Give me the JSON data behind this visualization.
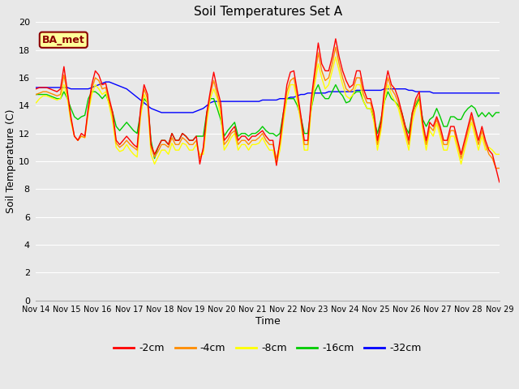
{
  "title": "Soil Temperatures Set A",
  "xlabel": "Time",
  "ylabel": "Soil Temperature (C)",
  "ylim": [
    0,
    20
  ],
  "yticks": [
    0,
    2,
    4,
    6,
    8,
    10,
    12,
    14,
    16,
    18,
    20
  ],
  "xtick_labels": [
    "Nov 14",
    "Nov 15",
    "Nov 16",
    "Nov 17",
    "Nov 18",
    "Nov 19",
    "Nov 20",
    "Nov 21",
    "Nov 22",
    "Nov 23",
    "Nov 24",
    "Nov 25",
    "Nov 26",
    "Nov 27",
    "Nov 28",
    "Nov 29"
  ],
  "background_color": "#e8e8e8",
  "plot_bg_color": "#e8e8e8",
  "grid_color": "#ffffff",
  "annotation_text": "BA_met",
  "annotation_bg": "#ffff99",
  "annotation_border": "#8b0000",
  "series": {
    "2cm": {
      "color": "#ff0000",
      "label": "-2cm",
      "values": [
        15.2,
        15.3,
        15.3,
        15.3,
        15.2,
        15.1,
        15.0,
        15.2,
        16.8,
        15.0,
        13.2,
        11.8,
        11.5,
        12.0,
        11.8,
        13.9,
        15.5,
        16.5,
        16.2,
        15.5,
        15.6,
        14.5,
        13.5,
        11.5,
        11.2,
        11.5,
        11.8,
        11.5,
        11.2,
        11.0,
        13.8,
        15.5,
        14.8,
        11.2,
        10.5,
        11.0,
        11.5,
        11.5,
        11.2,
        12.0,
        11.5,
        11.5,
        12.0,
        11.8,
        11.5,
        11.5,
        11.8,
        9.8,
        11.0,
        13.5,
        15.0,
        16.4,
        15.2,
        14.2,
        11.5,
        11.8,
        12.2,
        12.5,
        11.5,
        11.8,
        11.8,
        11.5,
        11.8,
        11.8,
        12.0,
        12.2,
        11.8,
        11.5,
        11.5,
        9.7,
        11.5,
        13.5,
        15.5,
        16.4,
        16.5,
        15.0,
        13.3,
        11.5,
        11.5,
        14.5,
        16.5,
        18.5,
        17.0,
        16.5,
        16.5,
        17.5,
        18.8,
        17.5,
        16.5,
        15.8,
        15.3,
        15.5,
        16.5,
        16.5,
        15.2,
        14.5,
        14.5,
        13.5,
        11.5,
        12.8,
        15.2,
        16.5,
        15.5,
        15.2,
        14.5,
        13.5,
        12.5,
        11.5,
        13.5,
        14.5,
        15.0,
        12.8,
        11.5,
        12.8,
        12.5,
        13.2,
        12.5,
        11.5,
        11.5,
        12.5,
        12.5,
        11.5,
        10.5,
        11.5,
        12.5,
        13.5,
        12.5,
        11.5,
        12.5,
        11.5,
        10.8,
        10.5,
        9.5,
        8.5
      ]
    },
    "4cm": {
      "color": "#ff8c00",
      "label": "-4cm",
      "values": [
        14.8,
        14.9,
        15.0,
        15.0,
        14.9,
        14.8,
        14.7,
        14.8,
        16.2,
        14.8,
        13.0,
        11.8,
        11.5,
        11.8,
        11.7,
        13.7,
        15.2,
        16.0,
        15.8,
        15.2,
        15.3,
        14.3,
        13.2,
        11.3,
        11.0,
        11.2,
        11.5,
        11.2,
        11.0,
        10.8,
        13.5,
        15.2,
        14.5,
        11.0,
        10.3,
        10.7,
        11.2,
        11.2,
        11.0,
        11.7,
        11.2,
        11.2,
        11.7,
        11.5,
        11.2,
        11.2,
        11.5,
        10.2,
        10.8,
        13.2,
        14.8,
        15.8,
        14.8,
        13.8,
        11.2,
        11.5,
        12.0,
        12.2,
        11.2,
        11.5,
        11.5,
        11.2,
        11.5,
        11.5,
        11.7,
        12.0,
        11.5,
        11.2,
        11.2,
        10.2,
        11.2,
        13.2,
        15.0,
        15.8,
        16.0,
        14.7,
        13.0,
        11.2,
        11.2,
        14.2,
        16.0,
        17.8,
        16.5,
        15.8,
        16.0,
        17.0,
        18.2,
        17.0,
        16.0,
        15.2,
        15.0,
        15.2,
        16.0,
        16.0,
        14.8,
        14.2,
        14.2,
        13.2,
        11.2,
        12.5,
        14.8,
        16.0,
        15.2,
        14.8,
        14.2,
        13.2,
        12.2,
        11.2,
        13.2,
        14.2,
        14.7,
        12.5,
        11.2,
        12.5,
        12.2,
        13.0,
        12.2,
        11.2,
        11.2,
        12.2,
        12.2,
        11.2,
        10.2,
        11.2,
        12.2,
        13.2,
        12.2,
        11.2,
        12.2,
        11.2,
        10.5,
        10.2,
        9.5,
        9.5
      ]
    },
    "8cm": {
      "color": "#ffff00",
      "label": "-8cm",
      "values": [
        14.2,
        14.5,
        14.7,
        14.7,
        14.6,
        14.5,
        14.4,
        14.5,
        15.5,
        14.5,
        12.8,
        11.8,
        11.5,
        11.8,
        11.7,
        13.5,
        14.8,
        15.5,
        15.2,
        14.8,
        15.0,
        14.0,
        12.8,
        11.0,
        10.7,
        10.8,
        11.2,
        10.8,
        10.5,
        10.3,
        13.2,
        14.8,
        14.2,
        10.5,
        9.8,
        10.3,
        10.8,
        10.8,
        10.5,
        11.3,
        10.8,
        10.8,
        11.3,
        11.2,
        10.8,
        10.8,
        11.2,
        10.5,
        10.5,
        12.8,
        14.5,
        15.2,
        14.5,
        13.3,
        10.8,
        11.2,
        11.7,
        12.0,
        10.8,
        11.2,
        11.2,
        10.8,
        11.2,
        11.2,
        11.3,
        11.7,
        11.2,
        10.8,
        10.8,
        9.8,
        10.8,
        12.8,
        14.5,
        15.5,
        15.5,
        14.3,
        12.8,
        10.8,
        10.8,
        13.8,
        15.5,
        17.0,
        16.0,
        15.2,
        15.5,
        16.5,
        17.5,
        16.5,
        15.5,
        14.7,
        14.5,
        14.8,
        15.5,
        15.5,
        14.3,
        13.8,
        13.8,
        12.8,
        10.8,
        12.2,
        14.3,
        15.5,
        14.8,
        14.3,
        13.8,
        12.8,
        11.8,
        10.8,
        12.8,
        13.8,
        14.3,
        12.2,
        10.8,
        12.2,
        11.8,
        12.7,
        11.8,
        10.8,
        10.8,
        11.8,
        11.8,
        10.8,
        9.8,
        10.8,
        11.8,
        12.8,
        11.8,
        10.8,
        11.8,
        10.8,
        11.0,
        10.8,
        10.5,
        10.5
      ]
    },
    "16cm": {
      "color": "#00cc00",
      "label": "-16cm",
      "values": [
        14.8,
        14.8,
        14.8,
        14.8,
        14.7,
        14.6,
        14.5,
        14.5,
        15.0,
        14.5,
        13.8,
        13.2,
        13.0,
        13.2,
        13.3,
        14.5,
        15.0,
        15.0,
        14.8,
        14.5,
        14.8,
        14.2,
        13.5,
        12.5,
        12.2,
        12.5,
        12.8,
        12.5,
        12.2,
        12.0,
        13.5,
        14.5,
        14.2,
        11.5,
        10.2,
        11.0,
        11.5,
        11.5,
        11.2,
        12.0,
        11.5,
        11.5,
        12.0,
        11.8,
        11.5,
        11.5,
        11.8,
        11.8,
        11.8,
        13.5,
        14.5,
        14.5,
        13.8,
        13.0,
        11.8,
        12.2,
        12.5,
        12.8,
        11.8,
        12.0,
        12.0,
        11.8,
        12.0,
        12.0,
        12.2,
        12.5,
        12.2,
        12.0,
        12.0,
        11.8,
        12.0,
        13.5,
        14.5,
        14.5,
        14.5,
        14.0,
        13.2,
        12.0,
        12.0,
        13.8,
        15.0,
        15.5,
        14.8,
        14.5,
        14.5,
        15.0,
        15.5,
        15.0,
        14.7,
        14.2,
        14.3,
        14.8,
        15.0,
        15.0,
        14.3,
        13.8,
        13.8,
        13.0,
        12.0,
        13.0,
        14.3,
        15.0,
        14.5,
        14.3,
        14.0,
        13.5,
        12.5,
        12.0,
        13.5,
        14.0,
        14.5,
        13.0,
        12.5,
        13.0,
        13.2,
        13.8,
        13.2,
        12.5,
        12.5,
        13.2,
        13.2,
        13.0,
        13.0,
        13.5,
        13.8,
        14.0,
        13.8,
        13.2,
        13.5,
        13.2,
        13.5,
        13.2,
        13.5,
        13.5
      ]
    },
    "32cm": {
      "color": "#0000ff",
      "label": "-32cm",
      "values": [
        15.3,
        15.3,
        15.3,
        15.3,
        15.3,
        15.3,
        15.3,
        15.3,
        15.3,
        15.3,
        15.2,
        15.2,
        15.2,
        15.2,
        15.2,
        15.2,
        15.3,
        15.4,
        15.5,
        15.6,
        15.7,
        15.7,
        15.6,
        15.5,
        15.4,
        15.3,
        15.2,
        15.0,
        14.8,
        14.6,
        14.4,
        14.2,
        14.0,
        13.8,
        13.7,
        13.6,
        13.5,
        13.5,
        13.5,
        13.5,
        13.5,
        13.5,
        13.5,
        13.5,
        13.5,
        13.5,
        13.6,
        13.7,
        13.8,
        14.0,
        14.2,
        14.3,
        14.3,
        14.3,
        14.3,
        14.3,
        14.3,
        14.3,
        14.3,
        14.3,
        14.3,
        14.3,
        14.3,
        14.3,
        14.3,
        14.4,
        14.4,
        14.4,
        14.4,
        14.4,
        14.5,
        14.5,
        14.5,
        14.6,
        14.6,
        14.7,
        14.8,
        14.8,
        14.9,
        14.9,
        14.9,
        14.9,
        14.9,
        14.9,
        15.0,
        15.0,
        15.0,
        15.0,
        15.0,
        15.0,
        15.0,
        15.0,
        15.1,
        15.1,
        15.1,
        15.1,
        15.1,
        15.1,
        15.1,
        15.1,
        15.2,
        15.2,
        15.2,
        15.2,
        15.2,
        15.2,
        15.2,
        15.1,
        15.1,
        15.0,
        15.0,
        15.0,
        15.0,
        15.0,
        14.9,
        14.9,
        14.9,
        14.9,
        14.9,
        14.9,
        14.9,
        14.9,
        14.9,
        14.9,
        14.9,
        14.9,
        14.9,
        14.9,
        14.9,
        14.9,
        14.9,
        14.9,
        14.9,
        14.9
      ]
    }
  }
}
